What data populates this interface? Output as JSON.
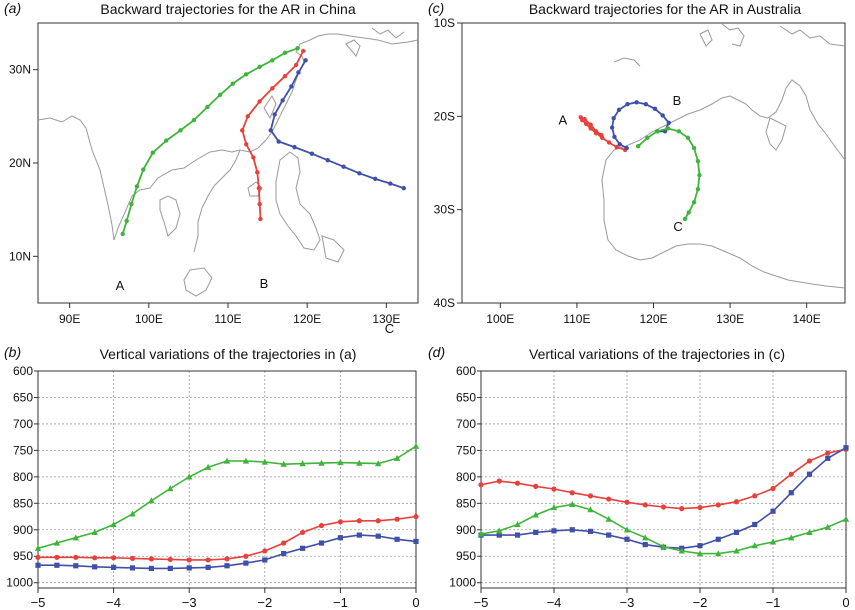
{
  "colors": {
    "green": "#3fb43a",
    "red": "#e8413c",
    "blue": "#4050a8",
    "coast": "#9a9a9a",
    "grid": "#9a9a9a"
  },
  "chart_data": [
    {
      "panel": "(a)",
      "title": "Backward trajectories for the AR in China",
      "type": "map",
      "xlim": [
        86,
        134
      ],
      "ylim": [
        5,
        35
      ],
      "xticks": [
        90,
        100,
        110,
        120,
        130
      ],
      "xtick_labels": [
        "90E",
        "100E",
        "110E",
        "120E",
        "130E"
      ],
      "yticks": [
        10,
        20,
        30
      ],
      "ytick_labels": [
        "10N",
        "20N",
        "30N"
      ],
      "series": [
        {
          "name": "A",
          "color": "green",
          "label_at": [
            95.8,
            6.4
          ],
          "points": [
            [
              118.8,
              32.3
            ],
            [
              117.2,
              31.8
            ],
            [
              115.6,
              31.0
            ],
            [
              114.0,
              30.3
            ],
            [
              112.3,
              29.5
            ],
            [
              110.6,
              28.5
            ],
            [
              109.0,
              27.3
            ],
            [
              107.4,
              26.0
            ],
            [
              105.7,
              24.6
            ],
            [
              104.0,
              23.5
            ],
            [
              102.2,
              22.4
            ],
            [
              100.5,
              21.1
            ],
            [
              99.3,
              19.3
            ],
            [
              98.5,
              17.5
            ],
            [
              97.8,
              15.6
            ],
            [
              97.2,
              13.8
            ],
            [
              96.7,
              12.4
            ]
          ]
        },
        {
          "name": "B",
          "color": "red",
          "label_at": [
            114.0,
            6.6
          ],
          "points": [
            [
              119.5,
              32.0
            ],
            [
              118.6,
              30.5
            ],
            [
              117.2,
              29.3
            ],
            [
              115.6,
              28.0
            ],
            [
              114.0,
              26.6
            ],
            [
              112.5,
              25.0
            ],
            [
              111.8,
              23.5
            ],
            [
              112.3,
              22.0
            ],
            [
              113.2,
              20.6
            ],
            [
              113.7,
              19.0
            ],
            [
              113.9,
              17.3
            ],
            [
              114.0,
              15.6
            ],
            [
              114.1,
              14.0
            ]
          ]
        },
        {
          "name": "C",
          "color": "blue",
          "label_at": [
            129.8,
            1.8
          ],
          "points": [
            [
              119.8,
              31.0
            ],
            [
              118.9,
              29.7
            ],
            [
              118.0,
              28.2
            ],
            [
              116.9,
              26.7
            ],
            [
              115.9,
              25.2
            ],
            [
              115.4,
              23.5
            ],
            [
              116.4,
              22.3
            ],
            [
              118.4,
              21.7
            ],
            [
              120.6,
              21.0
            ],
            [
              122.6,
              20.3
            ],
            [
              124.6,
              19.6
            ],
            [
              126.6,
              18.9
            ],
            [
              128.6,
              18.3
            ],
            [
              130.5,
              17.8
            ],
            [
              132.2,
              17.3
            ]
          ]
        }
      ]
    },
    {
      "panel": "(c)",
      "title": "Backward trajectories for the AR in Australia",
      "type": "map",
      "xlim": [
        95,
        145
      ],
      "ylim": [
        -40,
        -10
      ],
      "xticks": [
        100,
        110,
        120,
        130,
        140
      ],
      "xtick_labels": [
        "100E",
        "110E",
        "120E",
        "130E",
        "140E"
      ],
      "yticks": [
        -10,
        -20,
        -30,
        -40
      ],
      "ytick_labels": [
        "10S",
        "20S",
        "30S",
        "40S"
      ],
      "series": [
        {
          "name": "A",
          "color": "red",
          "label_at": [
            107.6,
            -20.9
          ],
          "points": [
            [
              116.3,
              -23.6
            ],
            [
              115.2,
              -23.3
            ],
            [
              114.2,
              -22.8
            ],
            [
              113.3,
              -22.3
            ],
            [
              112.5,
              -21.8
            ],
            [
              111.8,
              -21.3
            ],
            [
              111.2,
              -20.8
            ],
            [
              110.7,
              -20.4
            ],
            [
              110.5,
              -20.1
            ],
            [
              111.0,
              -20.3
            ],
            [
              111.8,
              -20.9
            ],
            [
              112.5,
              -21.6
            ],
            [
              113.2,
              -22.0
            ]
          ]
        },
        {
          "name": "B",
          "color": "blue",
          "label_at": [
            122.5,
            -18.8
          ],
          "points": [
            [
              116.5,
              -23.4
            ],
            [
              115.6,
              -23.0
            ],
            [
              114.9,
              -22.2
            ],
            [
              114.6,
              -21.2
            ],
            [
              114.8,
              -20.2
            ],
            [
              115.5,
              -19.3
            ],
            [
              116.6,
              -18.7
            ],
            [
              117.8,
              -18.5
            ],
            [
              119.0,
              -18.7
            ],
            [
              120.2,
              -19.2
            ],
            [
              121.2,
              -19.9
            ],
            [
              122.0,
              -20.7
            ],
            [
              121.5,
              -21.6
            ],
            [
              120.5,
              -21.6
            ]
          ]
        },
        {
          "name": "C",
          "color": "green",
          "label_at": [
            122.6,
            -32.3
          ],
          "points": [
            [
              118.0,
              -23.2
            ],
            [
              119.2,
              -22.3
            ],
            [
              120.5,
              -21.6
            ],
            [
              121.9,
              -21.3
            ],
            [
              123.3,
              -21.6
            ],
            [
              124.5,
              -22.3
            ],
            [
              125.3,
              -23.4
            ],
            [
              125.8,
              -24.8
            ],
            [
              126.0,
              -26.3
            ],
            [
              125.8,
              -27.8
            ],
            [
              125.3,
              -29.2
            ],
            [
              124.6,
              -30.3
            ],
            [
              124.1,
              -31.0
            ]
          ]
        }
      ]
    },
    {
      "panel": "(b)",
      "title": "Vertical variations of the trajectories in (a)",
      "type": "line",
      "xlim": [
        -5,
        0
      ],
      "ylim": [
        1010,
        600
      ],
      "y_inverted": true,
      "xticks": [
        -5,
        -4,
        -3,
        -2,
        -1,
        0
      ],
      "xtick_labels": [
        "−5",
        "−4",
        "−3",
        "−2",
        "−1",
        "0"
      ],
      "yticks": [
        600,
        650,
        700,
        750,
        800,
        850,
        900,
        950,
        1000
      ],
      "ytick_labels": [
        "600",
        "650",
        "700",
        "750",
        "800",
        "850",
        "900",
        "950",
        "1000"
      ],
      "grid": true,
      "x": [
        -5,
        -4.75,
        -4.5,
        -4.25,
        -4,
        -3.75,
        -3.5,
        -3.25,
        -3,
        -2.75,
        -2.5,
        -2.25,
        -2,
        -1.75,
        -1.5,
        -1.25,
        -1,
        -0.75,
        -0.5,
        -0.25,
        0
      ],
      "series": [
        {
          "color": "green",
          "marker": "triangle",
          "values": [
            935,
            925,
            915,
            905,
            890,
            870,
            845,
            822,
            800,
            782,
            770,
            770,
            772,
            776,
            775,
            774,
            773,
            774,
            775,
            765,
            742
          ]
        },
        {
          "color": "red",
          "marker": "circle",
          "values": [
            952,
            952,
            952,
            953,
            953,
            954,
            955,
            956,
            957,
            957,
            955,
            950,
            940,
            925,
            905,
            892,
            885,
            883,
            883,
            880,
            875
          ]
        },
        {
          "color": "blue",
          "marker": "square",
          "values": [
            967,
            967,
            968,
            970,
            971,
            972,
            973,
            973,
            972,
            971,
            968,
            963,
            957,
            945,
            935,
            925,
            915,
            910,
            912,
            918,
            922
          ]
        }
      ]
    },
    {
      "panel": "(d)",
      "title": "Vertical variations of the trajectories in (c)",
      "type": "line",
      "xlim": [
        -5,
        0
      ],
      "ylim": [
        1010,
        600
      ],
      "y_inverted": true,
      "xticks": [
        -5,
        -4,
        -3,
        -2,
        -1,
        0
      ],
      "xtick_labels": [
        "−5",
        "−4",
        "−3",
        "−2",
        "−1",
        "0"
      ],
      "yticks": [
        600,
        650,
        700,
        750,
        800,
        850,
        900,
        950,
        1000
      ],
      "ytick_labels": [
        "600",
        "650",
        "700",
        "750",
        "800",
        "850",
        "900",
        "950",
        "1000"
      ],
      "grid": true,
      "x": [
        -5,
        -4.75,
        -4.5,
        -4.25,
        -4,
        -3.75,
        -3.5,
        -3.25,
        -3,
        -2.75,
        -2.5,
        -2.25,
        -2,
        -1.75,
        -1.5,
        -1.25,
        -1,
        -0.75,
        -0.5,
        -0.25,
        0
      ],
      "series": [
        {
          "color": "red",
          "marker": "circle",
          "values": [
            815,
            808,
            812,
            818,
            823,
            830,
            836,
            842,
            848,
            853,
            857,
            860,
            858,
            853,
            847,
            836,
            822,
            795,
            770,
            755,
            748
          ]
        },
        {
          "color": "blue",
          "marker": "square",
          "values": [
            910,
            910,
            910,
            905,
            902,
            900,
            903,
            910,
            918,
            928,
            933,
            935,
            930,
            918,
            905,
            890,
            865,
            830,
            795,
            765,
            745
          ]
        },
        {
          "color": "green",
          "marker": "triangle",
          "values": [
            908,
            902,
            890,
            872,
            858,
            852,
            862,
            880,
            900,
            915,
            932,
            940,
            945,
            945,
            940,
            930,
            923,
            915,
            905,
            895,
            880
          ]
        }
      ]
    }
  ]
}
